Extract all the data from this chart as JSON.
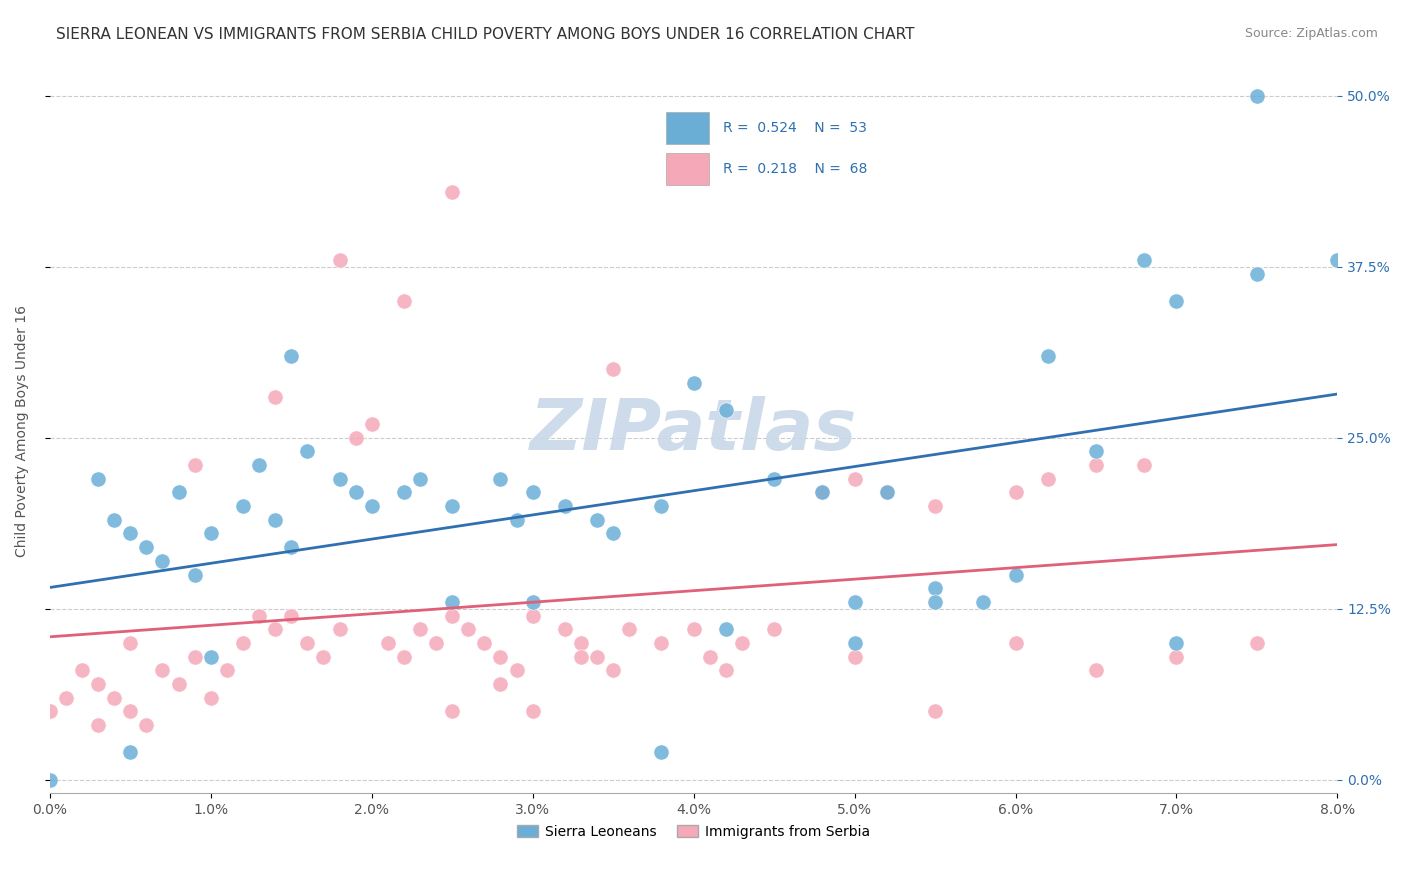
{
  "title": "SIERRA LEONEAN VS IMMIGRANTS FROM SERBIA CHILD POVERTY AMONG BOYS UNDER 16 CORRELATION CHART",
  "source": "Source: ZipAtlas.com",
  "xlabel_ticks": [
    "0.0%",
    "1.0%",
    "2.0%",
    "3.0%",
    "4.0%",
    "5.0%",
    "6.0%",
    "7.0%",
    "8.0%"
  ],
  "ylabel_ticks": [
    "0.0%",
    "12.5%",
    "25.0%",
    "37.5%",
    "50.0%"
  ],
  "ylabel_label": "Child Poverty Among Boys Under 16",
  "legend_bottom": [
    "Sierra Leoneans",
    "Immigrants from Serbia"
  ],
  "blue_R": 0.524,
  "blue_N": 53,
  "pink_R": 0.218,
  "pink_N": 68,
  "blue_color": "#6aaed6",
  "pink_color": "#f4a8b8",
  "blue_line_color": "#3070b0",
  "pink_line_color": "#e0607a",
  "watermark": "ZIPatlas",
  "watermark_color": "#c8d8e8",
  "background_color": "#ffffff",
  "grid_color": "#cccccc",
  "title_fontsize": 11,
  "blue_scatter_x": [
    0.0,
    0.003,
    0.004,
    0.005,
    0.006,
    0.007,
    0.008,
    0.009,
    0.01,
    0.012,
    0.013,
    0.014,
    0.015,
    0.016,
    0.018,
    0.019,
    0.02,
    0.022,
    0.023,
    0.025,
    0.028,
    0.029,
    0.03,
    0.032,
    0.034,
    0.035,
    0.038,
    0.04,
    0.042,
    0.045,
    0.048,
    0.05,
    0.052,
    0.055,
    0.058,
    0.06,
    0.062,
    0.065,
    0.07,
    0.075,
    0.08,
    0.075,
    0.05,
    0.03,
    0.025,
    0.015,
    0.01,
    0.005,
    0.038,
    0.042,
    0.055,
    0.068,
    0.07
  ],
  "blue_scatter_y": [
    0.0,
    0.22,
    0.19,
    0.18,
    0.17,
    0.16,
    0.21,
    0.15,
    0.18,
    0.2,
    0.23,
    0.19,
    0.17,
    0.24,
    0.22,
    0.21,
    0.2,
    0.21,
    0.22,
    0.2,
    0.22,
    0.19,
    0.21,
    0.2,
    0.19,
    0.18,
    0.2,
    0.29,
    0.27,
    0.22,
    0.21,
    0.13,
    0.21,
    0.14,
    0.13,
    0.15,
    0.31,
    0.24,
    0.35,
    0.37,
    0.38,
    0.5,
    0.1,
    0.13,
    0.13,
    0.31,
    0.09,
    0.02,
    0.02,
    0.11,
    0.13,
    0.38,
    0.1
  ],
  "pink_scatter_x": [
    0.0,
    0.001,
    0.002,
    0.003,
    0.004,
    0.005,
    0.006,
    0.007,
    0.008,
    0.009,
    0.01,
    0.011,
    0.012,
    0.013,
    0.014,
    0.015,
    0.016,
    0.017,
    0.018,
    0.019,
    0.02,
    0.021,
    0.022,
    0.023,
    0.024,
    0.025,
    0.026,
    0.027,
    0.028,
    0.029,
    0.03,
    0.032,
    0.033,
    0.034,
    0.035,
    0.036,
    0.038,
    0.04,
    0.041,
    0.042,
    0.043,
    0.045,
    0.048,
    0.05,
    0.052,
    0.055,
    0.06,
    0.062,
    0.065,
    0.07,
    0.075,
    0.065,
    0.025,
    0.018,
    0.022,
    0.014,
    0.009,
    0.005,
    0.003,
    0.033,
    0.028,
    0.035,
    0.05,
    0.06,
    0.025,
    0.03,
    0.055,
    0.068
  ],
  "pink_scatter_y": [
    0.05,
    0.06,
    0.08,
    0.07,
    0.06,
    0.05,
    0.04,
    0.08,
    0.07,
    0.09,
    0.06,
    0.08,
    0.1,
    0.12,
    0.11,
    0.12,
    0.1,
    0.09,
    0.11,
    0.25,
    0.26,
    0.1,
    0.09,
    0.11,
    0.1,
    0.12,
    0.11,
    0.1,
    0.09,
    0.08,
    0.12,
    0.11,
    0.1,
    0.09,
    0.3,
    0.11,
    0.1,
    0.11,
    0.09,
    0.08,
    0.1,
    0.11,
    0.21,
    0.22,
    0.21,
    0.2,
    0.21,
    0.22,
    0.08,
    0.09,
    0.1,
    0.23,
    0.43,
    0.38,
    0.35,
    0.28,
    0.23,
    0.1,
    0.04,
    0.09,
    0.07,
    0.08,
    0.09,
    0.1,
    0.05,
    0.05,
    0.05,
    0.23
  ]
}
